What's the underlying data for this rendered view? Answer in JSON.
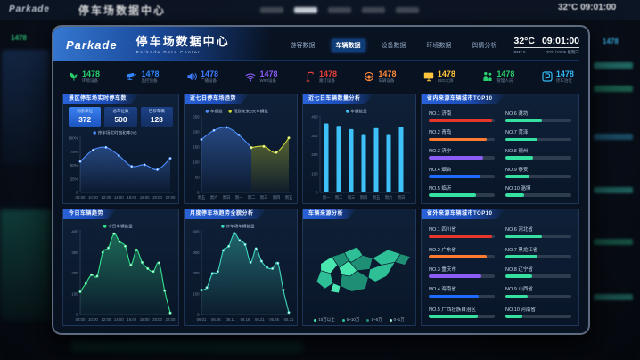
{
  "backdrop": {
    "brand": "Parkade",
    "title": "停车场数据中心",
    "clock": "32°C 09:01:00",
    "left_num": "1478",
    "right_num": "1478"
  },
  "header": {
    "brand": "Parkade",
    "title": "停车场数据中心",
    "subtitle": "Parkade Data Center",
    "nav": [
      {
        "label": "游客数据",
        "active": false
      },
      {
        "label": "车辆数据",
        "active": true
      },
      {
        "label": "设备数据",
        "active": false
      },
      {
        "label": "环境数据",
        "active": false
      },
      {
        "label": "舆情分析",
        "active": false
      }
    ],
    "temp": "32°C",
    "time": "09:01:00",
    "pm": "PM2.5",
    "date": "2021/10/06 星期三"
  },
  "stats": [
    {
      "icon": "leaf-icon",
      "value": "1478",
      "label": "环境设备",
      "color": "#2bd06e"
    },
    {
      "icon": "camera-icon",
      "value": "1478",
      "label": "监控设备",
      "color": "#2f86ff"
    },
    {
      "icon": "speaker-icon",
      "value": "1478",
      "label": "广播设备",
      "color": "#3f7bff"
    },
    {
      "icon": "wifi-icon",
      "value": "1478",
      "label": "WIFI设备",
      "color": "#8b5cf6"
    },
    {
      "icon": "streetlamp-icon",
      "value": "1478",
      "label": "路灯设备",
      "color": "#e8413a"
    },
    {
      "icon": "steering-wheel-icon",
      "value": "1478",
      "label": "车辆设备",
      "color": "#ff8a3c"
    },
    {
      "icon": "led-screen-icon",
      "value": "1478",
      "label": "LED大屏",
      "color": "#ffc53d"
    },
    {
      "icon": "staff-icon",
      "value": "1478",
      "label": "管理人员",
      "color": "#2bd06e"
    },
    {
      "icon": "parking-icon",
      "value": "1478",
      "label": "停车泊位",
      "color": "#35b9f6"
    }
  ],
  "panels": {
    "realtime": {
      "title": "景区停车场实时停车数",
      "boxes": [
        {
          "label": "剩余车位",
          "value": "372"
        },
        {
          "label": "总车位数",
          "value": "500"
        },
        {
          "label": "已停车辆",
          "value": "128"
        }
      ]
    },
    "week_trend": {
      "title": "近七日停车场趋势"
    },
    "week_count": {
      "title": "近七日车辆数量分析"
    },
    "today": {
      "title": "今日车辆趋势"
    },
    "month": {
      "title": "月度停车场趋势全貌分析"
    },
    "map": {
      "title": "车辆来源分析",
      "legend": [
        {
          "label": "10万以上",
          "color": "#49e6b0"
        },
        {
          "label": "5~10万",
          "color": "#2fbf96"
        },
        {
          "label": "1~5万",
          "color": "#1e8f74"
        },
        {
          "label": "0~1万",
          "color": "#a9ead6"
        }
      ]
    }
  },
  "top10_in": {
    "title": "省内来源车辆城市TOP10",
    "items": [
      {
        "rank": "NO.1",
        "name": "济南",
        "pct": 96,
        "color": "#e8352c"
      },
      {
        "rank": "NO.2",
        "name": "青岛",
        "pct": 88,
        "color": "#ff7b2f"
      },
      {
        "rank": "NO.3",
        "name": "济宁",
        "pct": 82,
        "color": "#8b5cf6"
      },
      {
        "rank": "NO.4",
        "name": "烟台",
        "pct": 78,
        "color": "#1f6bff"
      },
      {
        "rank": "NO.5",
        "name": "临沂",
        "pct": 72,
        "color": "#35e0a1"
      },
      {
        "rank": "NO.6",
        "name": "潍坊",
        "pct": 56,
        "color": "#35e0a1"
      },
      {
        "rank": "NO.7",
        "name": "菏泽",
        "pct": 48,
        "color": "#35e0a1"
      },
      {
        "rank": "NO.8",
        "name": "德州",
        "pct": 42,
        "color": "#35e0a1"
      },
      {
        "rank": "NO.9",
        "name": "泰安",
        "pct": 36,
        "color": "#35e0a1"
      },
      {
        "rank": "NO.10",
        "name": "淄博",
        "pct": 28,
        "color": "#35e0a1"
      }
    ]
  },
  "top10_out": {
    "title": "省外来源车辆城市TOP10",
    "items": [
      {
        "rank": "NO.1",
        "name": "四川省",
        "pct": 96,
        "color": "#e8352c"
      },
      {
        "rank": "NO.2",
        "name": "广东省",
        "pct": 88,
        "color": "#ff7b2f"
      },
      {
        "rank": "NO.3",
        "name": "重庆市",
        "pct": 80,
        "color": "#8b5cf6"
      },
      {
        "rank": "NO.4",
        "name": "海南省",
        "pct": 76,
        "color": "#1f6bff"
      },
      {
        "rank": "NO.5",
        "name": "广西壮族自治区",
        "pct": 74,
        "color": "#35e0a1"
      },
      {
        "rank": "NO.6",
        "name": "河北省",
        "pct": 56,
        "color": "#35e0a1"
      },
      {
        "rank": "NO.7",
        "name": "黑龙江省",
        "pct": 48,
        "color": "#35e0a1"
      },
      {
        "rank": "NO.8",
        "name": "辽宁省",
        "pct": 40,
        "color": "#35e0a1"
      },
      {
        "rank": "NO.9",
        "name": "山西省",
        "pct": 34,
        "color": "#35e0a1"
      },
      {
        "rank": "NO.10",
        "name": "河南省",
        "pct": 26,
        "color": "#35e0a1"
      }
    ]
  },
  "chart_data": [
    {
      "id": "saturation",
      "type": "line",
      "area": true,
      "x": [
        "08:00",
        "10:00",
        "12:00",
        "14:00",
        "16:00",
        "18:00",
        "20:00",
        "22:00"
      ],
      "series": [
        {
          "name": "停车场实时饱和率(%)",
          "color": "#4d8dff",
          "values": [
            57,
            78,
            83,
            68,
            48,
            51,
            42,
            63
          ]
        }
      ],
      "ylim": [
        0,
        100
      ],
      "yticks": [
        {
          "v": 0,
          "label": "0"
        },
        {
          "v": 25,
          "label": "25%"
        },
        {
          "v": 50,
          "label": "50%"
        },
        {
          "v": 75,
          "label": "75%"
        },
        {
          "v": 100,
          "label": "100%"
        }
      ]
    },
    {
      "id": "week_trend",
      "type": "line",
      "area": true,
      "x": [
        "周五",
        "周六",
        "周日",
        "周一",
        "周二",
        "周三",
        "周四",
        "周五"
      ],
      "series": [
        {
          "name": "车辆数",
          "color": "#4d8dff",
          "values": [
            175,
            205,
            215,
            190,
            148,
            null,
            null,
            null
          ]
        },
        {
          "name": "预测未来3天车辆数",
          "color": "#cdd935",
          "values": [
            null,
            null,
            null,
            null,
            148,
            152,
            132,
            180
          ]
        }
      ],
      "ylim": [
        0,
        250
      ],
      "ystep": 50
    },
    {
      "id": "week_count",
      "type": "bar",
      "x": [
        "周一",
        "周二",
        "周三",
        "周四",
        "周五",
        "周六",
        "周日"
      ],
      "series": [
        {
          "name": "车辆数量",
          "color": "#3ec1f8",
          "values": [
            365,
            352,
            335,
            308,
            340,
            308,
            348
          ]
        }
      ],
      "ylim": [
        0,
        400
      ],
      "ystep": 100
    },
    {
      "id": "today_trend",
      "type": "line",
      "area": true,
      "xlabels": [
        "08:00",
        "10:00",
        "12:00",
        "14:00",
        "16:00",
        "18:00",
        "20:00",
        "22:00"
      ],
      "series": [
        {
          "name": "今日车辆数量",
          "color": "#35e08c",
          "values": [
            110,
            150,
            192,
            185,
            300,
            322,
            390,
            352,
            330,
            240,
            312,
            252,
            222,
            208,
            250,
            115,
            8
          ]
        }
      ],
      "ylim": [
        0,
        400
      ],
      "ystep": 100
    },
    {
      "id": "month_trend",
      "type": "line",
      "area": true,
      "xlabels": [
        "06.01",
        "06.06",
        "06.11",
        "06.16",
        "06.21",
        "06.26",
        "06.31"
      ],
      "series": [
        {
          "name": "停车场车辆数量",
          "color": "#3fd6c0",
          "values": [
            118,
            130,
            198,
            208,
            310,
            330,
            392,
            358,
            338,
            252,
            318,
            258,
            228,
            222,
            248,
            118,
            10
          ]
        }
      ],
      "ylim": [
        0,
        400
      ],
      "ystep": 100
    }
  ]
}
